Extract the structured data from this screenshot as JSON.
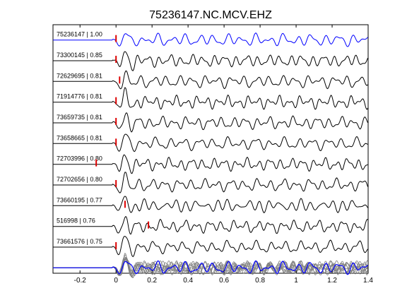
{
  "chart_data": {
    "type": "line",
    "title": "75236147.NC.MCV.EHZ",
    "xlabel": "",
    "ylabel": "",
    "xlim": [
      -0.35,
      1.4
    ],
    "xticks": [
      {
        "value": -0.2,
        "label": "-0.2"
      },
      {
        "value": 0,
        "label": "0"
      },
      {
        "value": 0.2,
        "label": "0.2"
      },
      {
        "value": 0.4,
        "label": "0.4"
      },
      {
        "value": 0.6,
        "label": "0.6"
      },
      {
        "value": 0.8,
        "label": "0.8"
      },
      {
        "value": 1,
        "label": "1"
      },
      {
        "value": 1.2,
        "label": "1.2"
      },
      {
        "value": 1.4,
        "label": "1.4"
      }
    ],
    "grid": false,
    "colors": {
      "reference": "#0000ff",
      "trace": "#000000",
      "stack": "#808080",
      "pick": "#dd0000"
    },
    "traces": [
      {
        "label": "75236147 | 1.00",
        "pick": 0.0,
        "reference": true
      },
      {
        "label": "73300145 | 0.85",
        "pick": 0.0
      },
      {
        "label": "72629695 | 0.81",
        "pick": 0.02
      },
      {
        "label": "71914776 | 0.81",
        "pick": 0.0
      },
      {
        "label": "73659735 | 0.81",
        "pick": 0.0
      },
      {
        "label": "73658665 | 0.81",
        "pick": 0.0
      },
      {
        "label": "72703996 | 0.80",
        "pick": -0.11
      },
      {
        "label": "72702656 | 0.80",
        "pick": 0.0
      },
      {
        "label": "73660195 | 0.77",
        "pick": 0.05
      },
      {
        "label": "516998 | 0.76",
        "pick": 0.18
      },
      {
        "label": "73661576 | 0.75",
        "pick": 0.0
      }
    ],
    "stack": {
      "label": ""
    }
  }
}
